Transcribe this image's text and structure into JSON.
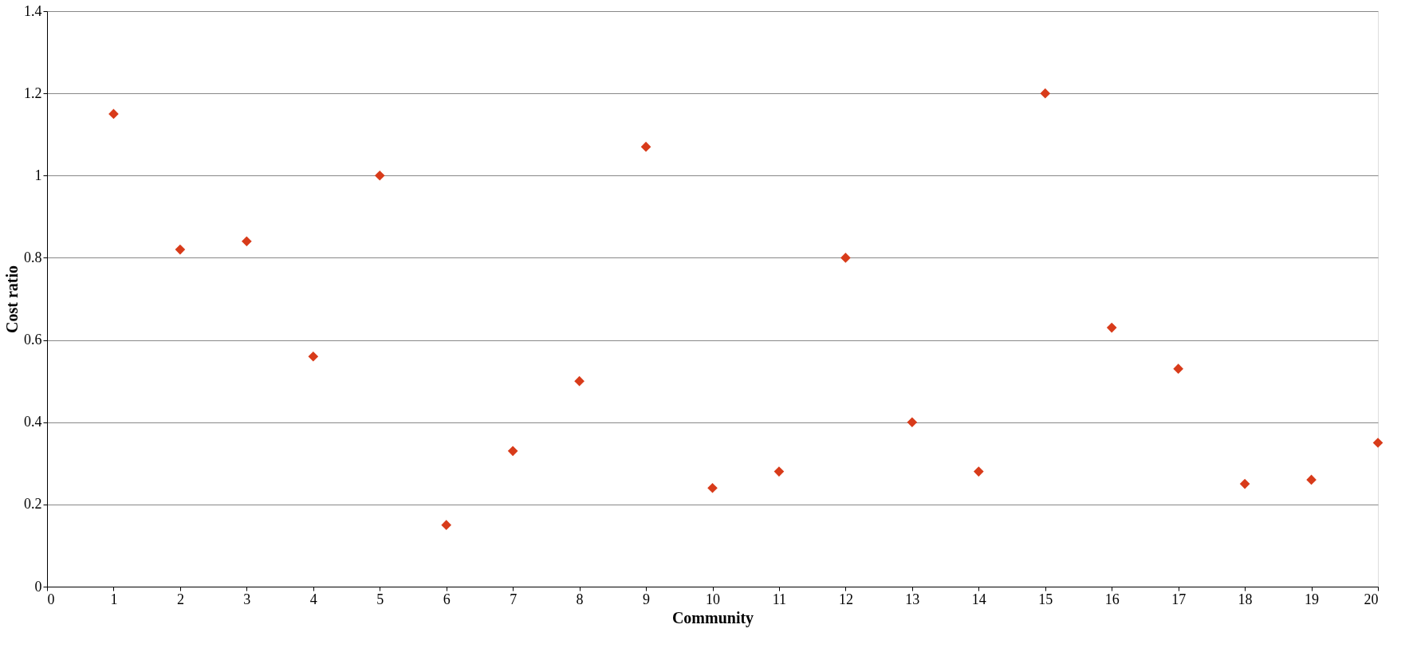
{
  "chart_data": {
    "type": "scatter",
    "xlabel": "Community",
    "ylabel": "Cost ratio",
    "x": [
      1,
      2,
      3,
      4,
      5,
      6,
      7,
      8,
      9,
      10,
      11,
      12,
      13,
      14,
      15,
      16,
      17,
      18,
      19,
      20
    ],
    "series": [
      {
        "color": "#d83b1a",
        "values": [
          1.15,
          0.82,
          0.84,
          0.56,
          1.0,
          0.15,
          0.33,
          0.5,
          1.07,
          0.24,
          0.28,
          0.8,
          0.4,
          0.28,
          1.2,
          0.63,
          0.53,
          0.25,
          0.26,
          0.35
        ]
      }
    ],
    "xlim": [
      0,
      20
    ],
    "xticks": [
      0,
      1,
      2,
      3,
      4,
      5,
      6,
      7,
      8,
      9,
      10,
      11,
      12,
      13,
      14,
      15,
      16,
      17,
      18,
      19,
      20
    ],
    "ylim": [
      0,
      1.4
    ],
    "yticks": [
      0,
      0.2,
      0.4,
      0.6,
      0.8,
      1,
      1.2,
      1.4
    ],
    "grid": "y",
    "marker": "diamond",
    "legend": false
  }
}
